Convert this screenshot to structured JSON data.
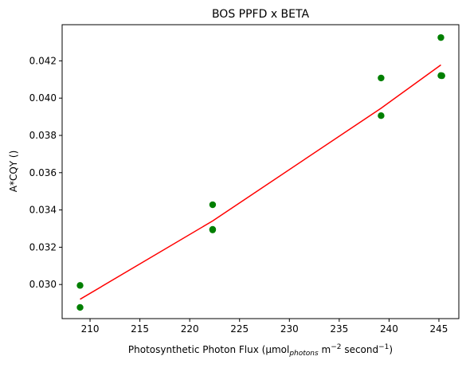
{
  "chart_data": {
    "type": "scatter",
    "title": "BOS PPFD x BETA",
    "xlabel": {
      "main": "Photosynthetic Photon Flux (µmol",
      "sub": "photons",
      "mid1": " m",
      "sup1": "−2",
      "mid2": " second",
      "sup2": "−1",
      "end": ")"
    },
    "ylabel": "A*CQY ()",
    "xlim": [
      207.2,
      247.0
    ],
    "ylim": [
      0.02817,
      0.04394
    ],
    "xticks": [
      210,
      215,
      220,
      225,
      230,
      235,
      240,
      245
    ],
    "yticks": [
      0.03,
      0.032,
      0.034,
      0.036,
      0.038,
      0.04,
      0.042
    ],
    "grid": false,
    "colors": {
      "points": "#007f00",
      "fit": "#ff0000"
    },
    "series": [
      {
        "kind": "scatter",
        "points": [
          {
            "x": 209.0,
            "y": 0.02995
          },
          {
            "x": 209.0,
            "y": 0.02877
          },
          {
            "x": 222.3,
            "y": 0.03428
          },
          {
            "x": 222.3,
            "y": 0.03296
          },
          {
            "x": 222.3,
            "y": 0.03293
          },
          {
            "x": 239.2,
            "y": 0.04108
          },
          {
            "x": 239.2,
            "y": 0.03906
          },
          {
            "x": 245.2,
            "y": 0.04325
          },
          {
            "x": 245.2,
            "y": 0.04121
          },
          {
            "x": 245.3,
            "y": 0.0412
          }
        ]
      },
      {
        "kind": "line",
        "points": [
          {
            "x": 209.0,
            "y": 0.02921
          },
          {
            "x": 222.3,
            "y": 0.03341
          },
          {
            "x": 239.2,
            "y": 0.03946
          },
          {
            "x": 245.2,
            "y": 0.04178
          }
        ]
      }
    ]
  }
}
